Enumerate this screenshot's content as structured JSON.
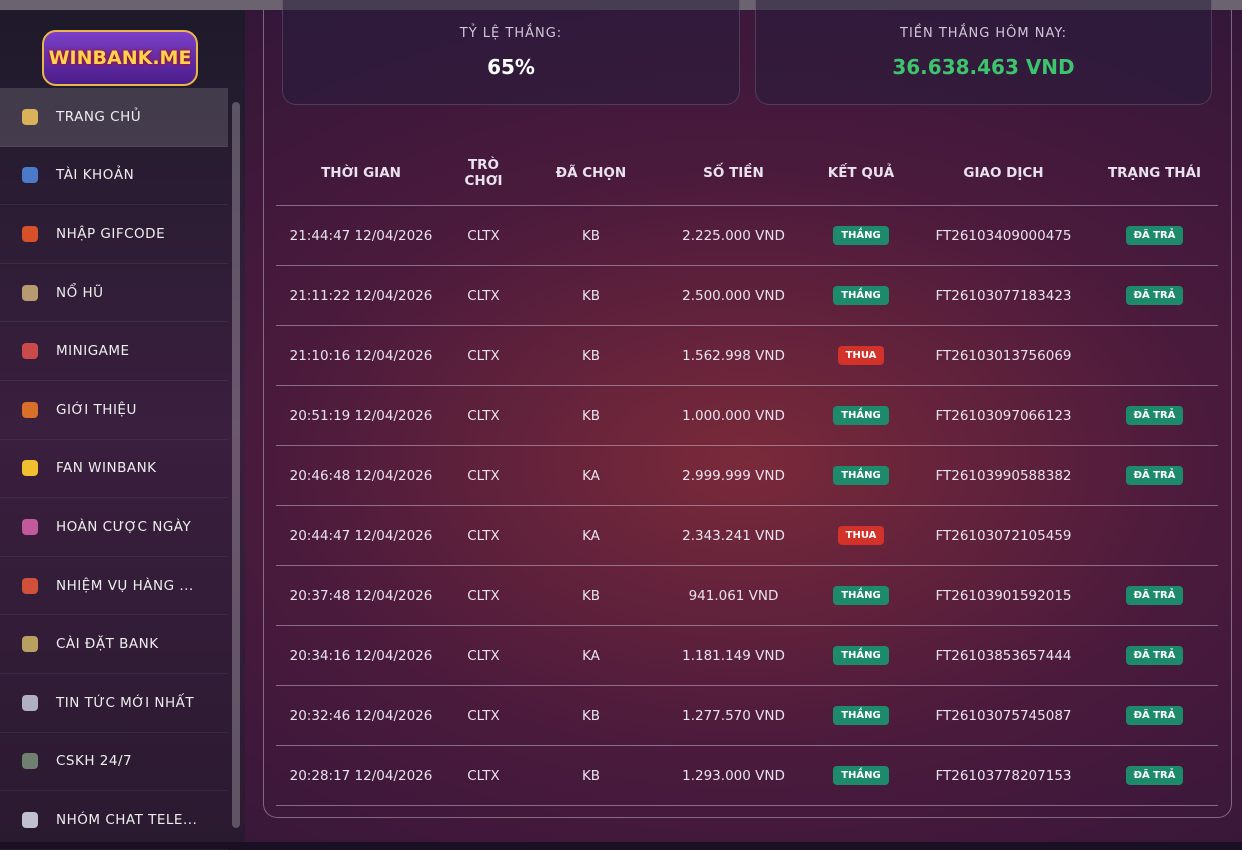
{
  "sidebar": {
    "logo": "WINBANK.ME",
    "menu": [
      "TRANG CHỦ",
      "TÀI KHOẢN",
      "NHẬP GIFCODE",
      "NỔ HŨ",
      "MINIGAME",
      "GIỚI THIỆU",
      "FAN WINBANK",
      "HOÀN CƯỢC NGÀY",
      "NHIỆM VỤ HÀNG ...",
      "CÀI ĐẶT BANK",
      "TIN TỨC MỚI NHẤT",
      "CSKH 24/7",
      "NHÓM CHAT TELE..."
    ]
  },
  "stats": [
    {
      "label": "TỶ LỆ THẮNG:",
      "value": "65%"
    },
    {
      "label": "TIỀN THẮNG HÔM NAY:",
      "value": "36.638.463 VND"
    }
  ],
  "table": {
    "headers": [
      "THỜI GIAN",
      "TRÒ CHƠI",
      "ĐÃ CHỌN",
      "SỐ TIỀN",
      "KẾT QUẢ",
      "GIAO DỊCH",
      "TRẠNG THÁI"
    ],
    "rows": [
      [
        "21:44:47 12/04/2026",
        "CLTX",
        "KB",
        "2.225.000 VND",
        "THẮNG",
        "FT26103409000475",
        "ĐÃ TRẢ"
      ],
      [
        "21:11:22 12/04/2026",
        "CLTX",
        "KB",
        "2.500.000 VND",
        "THẮNG",
        "FT26103077183423",
        "ĐÃ TRẢ"
      ],
      [
        "21:10:16 12/04/2026",
        "CLTX",
        "KB",
        "1.562.998 VND",
        "THUA",
        "FT26103013756069",
        null
      ],
      [
        "20:51:19 12/04/2026",
        "CLTX",
        "KB",
        "1.000.000 VND",
        "THẮNG",
        "FT26103097066123",
        "ĐÃ TRẢ"
      ],
      [
        "20:46:48 12/04/2026",
        "CLTX",
        "KA",
        "2.999.999 VND",
        "THẮNG",
        "FT26103990588382",
        "ĐÃ TRẢ"
      ],
      [
        "20:44:47 12/04/2026",
        "CLTX",
        "KA",
        "2.343.241 VND",
        "THUA",
        "FT26103072105459",
        null
      ],
      [
        "20:37:48 12/04/2026",
        "CLTX",
        "KB",
        "941.061 VND",
        "THẮNG",
        "FT26103901592015",
        "ĐÃ TRẢ"
      ],
      [
        "20:34:16 12/04/2026",
        "CLTX",
        "KA",
        "1.181.149 VND",
        "THẮNG",
        "FT26103853657444",
        "ĐÃ TRẢ"
      ],
      [
        "20:32:46 12/04/2026",
        "CLTX",
        "KB",
        "1.277.570 VND",
        "THẮNG",
        "FT26103075745087",
        "ĐÃ TRẢ"
      ],
      [
        "20:28:17 12/04/2026",
        "CLTX",
        "KB",
        "1.293.000 VND",
        "THẮNG",
        "FT26103778207153",
        "ĐÃ TRẢ"
      ]
    ]
  }
}
